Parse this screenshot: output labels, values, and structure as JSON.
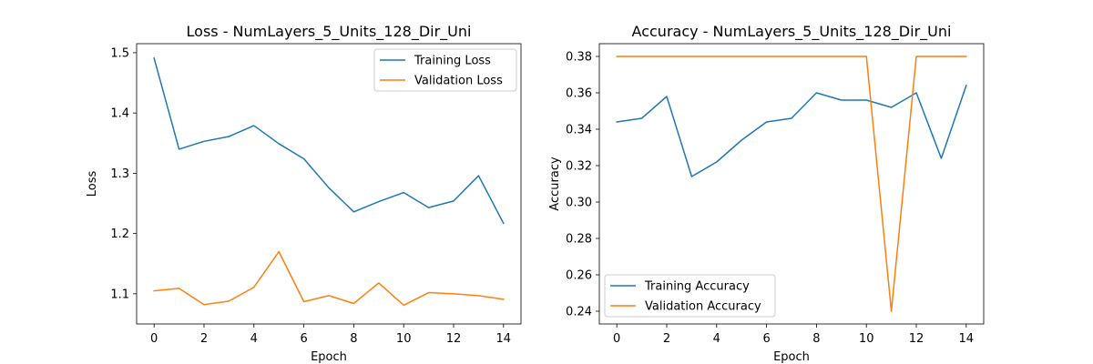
{
  "chart_data": [
    {
      "type": "line",
      "title": "Loss - NumLayers_5_Units_128_Dir_Uni",
      "xlabel": "Epoch",
      "ylabel": "Loss",
      "xlim": [
        -0.7,
        14.7
      ],
      "ylim": [
        1.05,
        1.515
      ],
      "xticks": [
        0,
        2,
        4,
        6,
        8,
        10,
        12,
        14
      ],
      "yticks": [
        1.1,
        1.2,
        1.3,
        1.4,
        1.5
      ],
      "ytick_labels": [
        "1.1",
        "1.2",
        "1.3",
        "1.4",
        "1.5"
      ],
      "legend": "upper right",
      "grid": false,
      "x": [
        0,
        1,
        2,
        3,
        4,
        5,
        6,
        7,
        8,
        9,
        10,
        11,
        12,
        13,
        14
      ],
      "series": [
        {
          "name": "Training Loss",
          "color": "#1f77b4",
          "values": [
            1.491,
            1.34,
            1.353,
            1.361,
            1.379,
            1.349,
            1.324,
            1.276,
            1.236,
            1.253,
            1.268,
            1.243,
            1.254,
            1.296,
            1.217
          ]
        },
        {
          "name": "Validation Loss",
          "color": "#ff7f0e",
          "values": [
            1.105,
            1.109,
            1.082,
            1.088,
            1.111,
            1.17,
            1.087,
            1.097,
            1.084,
            1.118,
            1.081,
            1.102,
            1.1,
            1.097,
            1.091
          ]
        }
      ]
    },
    {
      "type": "line",
      "title": "Accuracy - NumLayers_5_Units_128_Dir_Uni",
      "xlabel": "Epoch",
      "ylabel": "Accuracy",
      "xlim": [
        -0.7,
        14.7
      ],
      "ylim": [
        0.233,
        0.387
      ],
      "xticks": [
        0,
        2,
        4,
        6,
        8,
        10,
        12,
        14
      ],
      "yticks": [
        0.24,
        0.26,
        0.28,
        0.3,
        0.32,
        0.34,
        0.36,
        0.38
      ],
      "ytick_labels": [
        "0.24",
        "0.26",
        "0.28",
        "0.30",
        "0.32",
        "0.34",
        "0.36",
        "0.38"
      ],
      "legend": "lower left",
      "grid": false,
      "x": [
        0,
        1,
        2,
        3,
        4,
        5,
        6,
        7,
        8,
        9,
        10,
        11,
        12,
        13,
        14
      ],
      "series": [
        {
          "name": "Training Accuracy",
          "color": "#1f77b4",
          "values": [
            0.344,
            0.346,
            0.358,
            0.314,
            0.322,
            0.334,
            0.344,
            0.346,
            0.36,
            0.356,
            0.356,
            0.352,
            0.36,
            0.324,
            0.364
          ]
        },
        {
          "name": "Validation Accuracy",
          "color": "#ff7f0e",
          "values": [
            0.38,
            0.38,
            0.38,
            0.38,
            0.38,
            0.38,
            0.38,
            0.38,
            0.38,
            0.38,
            0.38,
            0.24,
            0.38,
            0.38,
            0.38
          ]
        }
      ]
    }
  ]
}
